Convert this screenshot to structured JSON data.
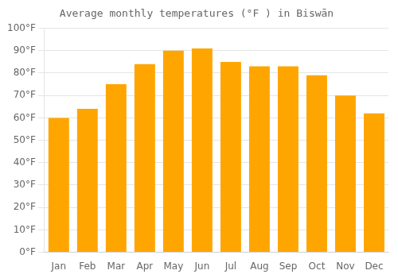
{
  "chart_data": {
    "type": "bar",
    "title": "Average monthly temperatures (°F ) in Biswān",
    "categories": [
      "Jan",
      "Feb",
      "Mar",
      "Apr",
      "May",
      "Jun",
      "Jul",
      "Aug",
      "Sep",
      "Oct",
      "Nov",
      "Dec"
    ],
    "values": [
      60,
      64,
      75,
      84,
      90,
      91,
      85,
      83,
      83,
      79,
      70,
      62
    ],
    "color": "#FFA500",
    "ylim": [
      0,
      100
    ],
    "yticks": [
      {
        "value": 0,
        "label": "0°F"
      },
      {
        "value": 10,
        "label": "10°F"
      },
      {
        "value": 20,
        "label": "20°F"
      },
      {
        "value": 30,
        "label": "30°F"
      },
      {
        "value": 40,
        "label": "40°F"
      },
      {
        "value": 50,
        "label": "50°F"
      },
      {
        "value": 60,
        "label": "60°F"
      },
      {
        "value": 70,
        "label": "70°F"
      },
      {
        "value": 80,
        "label": "80°F"
      },
      {
        "value": 90,
        "label": "90°F"
      },
      {
        "value": 100,
        "label": "100°F"
      }
    ],
    "grid": true
  }
}
